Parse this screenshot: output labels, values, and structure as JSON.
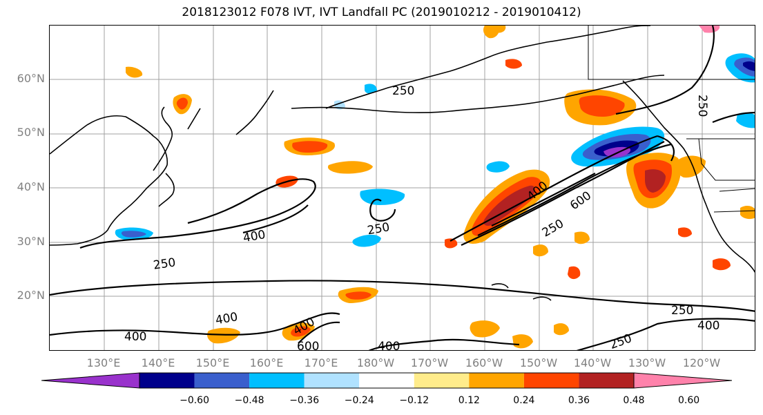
{
  "title": "2018123012 F078 IVT, IVT Landfall PC (2019010212 - 2019010412)",
  "lat_labels": [
    "60°N",
    "50°N",
    "40°N",
    "30°N",
    "20°N"
  ],
  "lon_labels": [
    "130°E",
    "140°E",
    "150°E",
    "160°E",
    "170°E",
    "180°W",
    "170°W",
    "160°W",
    "150°W",
    "140°W",
    "130°W",
    "120°W"
  ],
  "contour_labels": [
    "400",
    "250",
    "250",
    "400",
    "600",
    "250",
    "250",
    "400",
    "400",
    "400",
    "600",
    "400",
    "250",
    "400",
    "250",
    "250"
  ],
  "colorbar": {
    "colors": [
      "#9932cc",
      "#00008b",
      "#3a5fcd",
      "#00bfff",
      "#b0e2ff",
      "#ffffff",
      "#ffec8b",
      "#ffa500",
      "#ff4500",
      "#b22222",
      "#ff82ab"
    ],
    "ticks": [
      "−0.60",
      "−0.48",
      "−0.36",
      "−0.24",
      "−0.12",
      "0.12",
      "0.24",
      "0.36",
      "0.48",
      "0.60"
    ]
  }
}
